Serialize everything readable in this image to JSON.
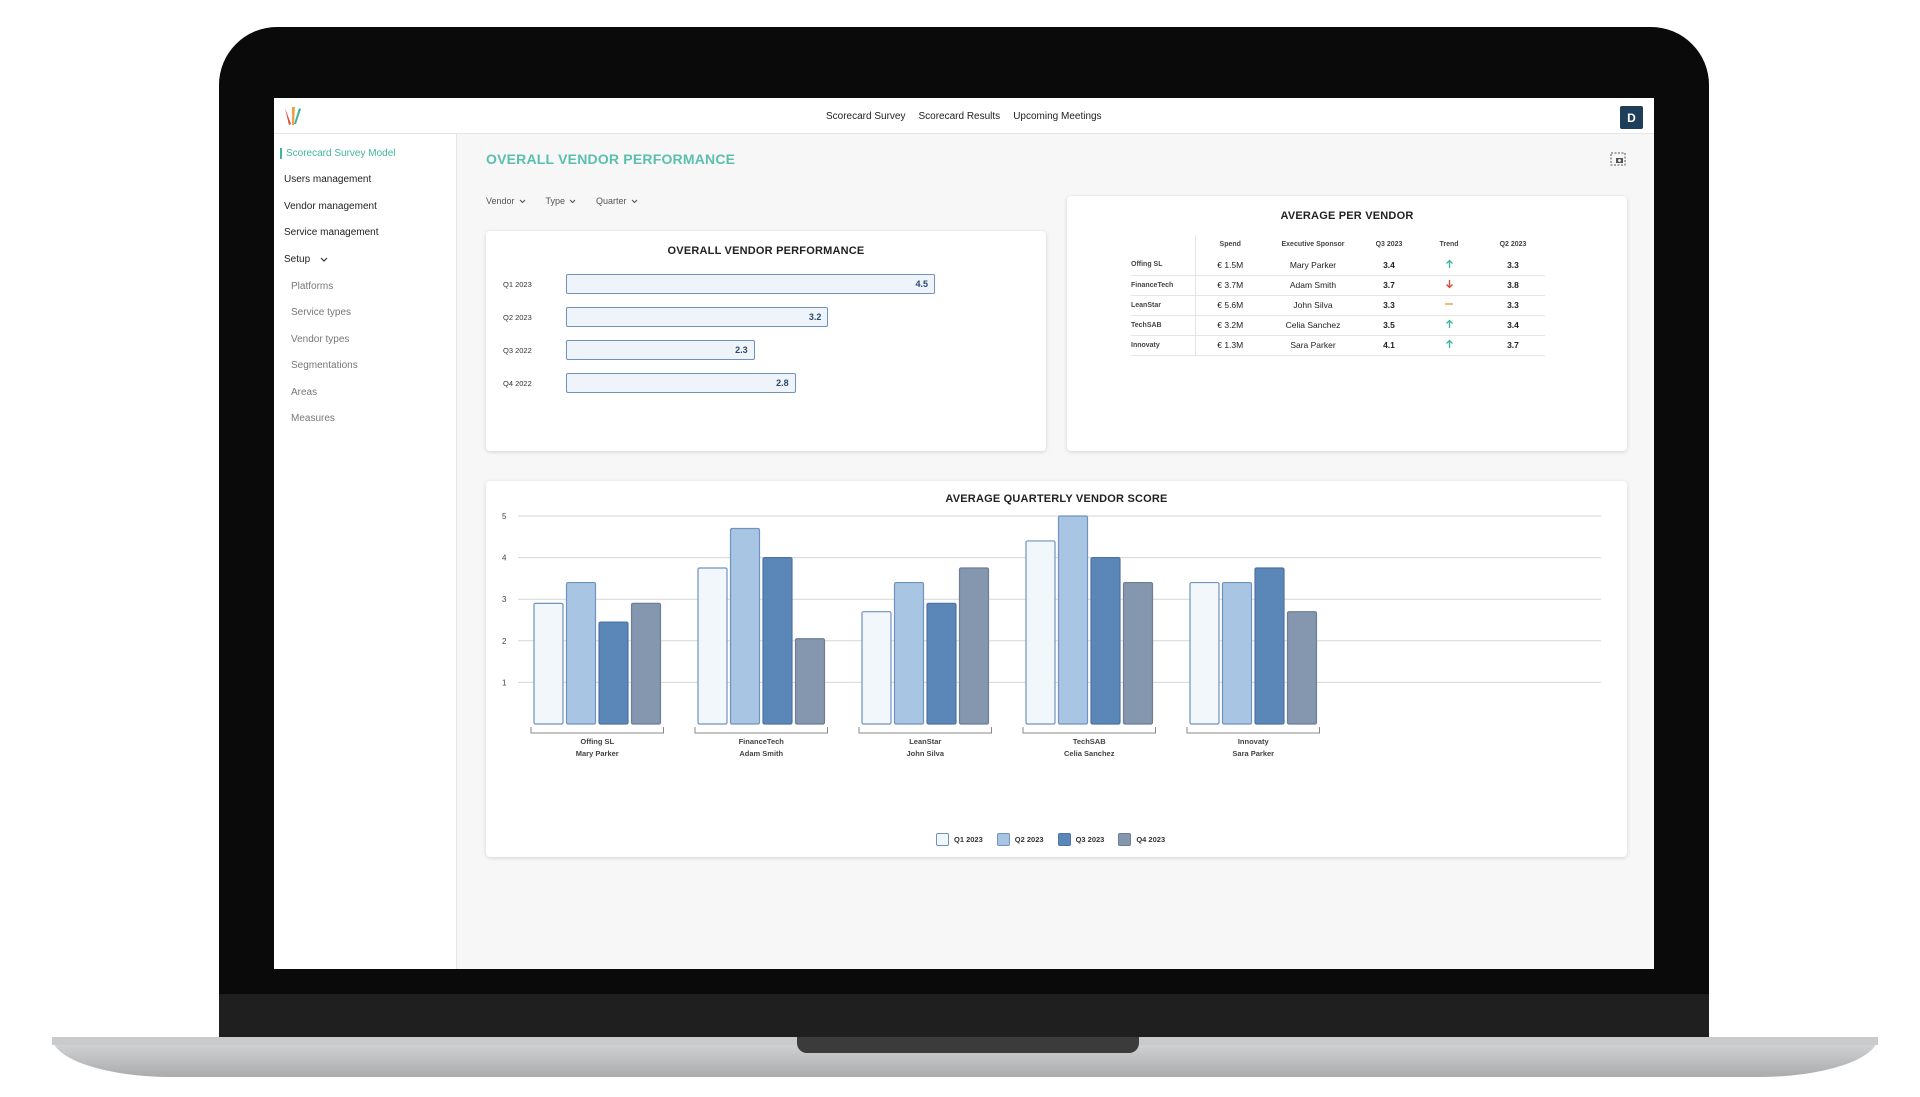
{
  "nav": {
    "links": [
      "Scorecard Survey",
      "Scorecard Results",
      "Upcoming Meetings"
    ],
    "avatar": "D"
  },
  "sidebar": {
    "items": [
      "Scorecard Survey Model",
      "Users management",
      "Vendor management",
      "Service management",
      "Setup"
    ],
    "setup_children": [
      "Platforms",
      "Service types",
      "Vendor types",
      "Segmentations",
      "Areas",
      "Measures"
    ]
  },
  "page": {
    "title": "OVERALL VENDOR PERFORMANCE",
    "filters": [
      "Vendor",
      "Type",
      "Quarter"
    ]
  },
  "overall_card": {
    "title": "OVERALL VENDOR PERFORMANCE"
  },
  "average_card": {
    "title": "AVERAGE PER VENDOR",
    "headers": [
      "Spend",
      "Executive Sponsor",
      "Q3 2023",
      "Trend",
      "Q2 2023"
    ],
    "rows": [
      {
        "vendor": "Offing SL",
        "spend": "€ 1.5M",
        "sponsor": "Mary Parker",
        "q3": "3.4",
        "trend": "up",
        "q2": "3.3"
      },
      {
        "vendor": "FinanceTech",
        "spend": "€ 3.7M",
        "sponsor": "Adam Smith",
        "q3": "3.7",
        "trend": "down",
        "q2": "3.8"
      },
      {
        "vendor": "LeanStar",
        "spend": "€ 5.6M",
        "sponsor": "John Silva",
        "q3": "3.3",
        "trend": "flat",
        "q2": "3.3"
      },
      {
        "vendor": "TechSAB",
        "spend": "€ 3.2M",
        "sponsor": "Celia Sanchez",
        "q3": "3.5",
        "trend": "up",
        "q2": "3.4"
      },
      {
        "vendor": "Innovaty",
        "spend": "€ 1.3M",
        "sponsor": "Sara Parker",
        "q3": "4.1",
        "trend": "up",
        "q2": "3.7"
      }
    ]
  },
  "quarterly_card": {
    "title": "AVERAGE QUARTERLY VENDOR SCORE"
  },
  "colors": {
    "accent": "#5bbfae",
    "q1": "#f2f7fc",
    "q2": "#a8c6e4",
    "q3": "#5b86b8",
    "q4": "#8597ae",
    "up": "#3fb5a1",
    "down": "#e0453a",
    "flat": "#f0a04b"
  },
  "chart_data": [
    {
      "type": "bar",
      "orientation": "horizontal",
      "title": "OVERALL VENDOR PERFORMANCE",
      "categories": [
        "Q1 2023",
        "Q2 2023",
        "Q3 2022",
        "Q4 2022"
      ],
      "values": [
        4.5,
        3.2,
        2.3,
        2.8
      ],
      "xlim": [
        0,
        5
      ]
    },
    {
      "type": "bar",
      "title": "AVERAGE QUARTERLY VENDOR SCORE",
      "categories": [
        "Offing SL",
        "FinanceTech",
        "LeanStar",
        "TechSAB",
        "Innovaty"
      ],
      "sublabels": [
        "Mary Parker",
        "Adam Smith",
        "John Silva",
        "Celia Sanchez",
        "Sara Parker"
      ],
      "series": [
        {
          "name": "Q1 2023",
          "values": [
            2.9,
            3.75,
            2.7,
            4.4,
            3.4
          ]
        },
        {
          "name": "Q2 2023",
          "values": [
            3.4,
            4.7,
            3.4,
            5.0,
            3.4
          ]
        },
        {
          "name": "Q3 2023",
          "values": [
            2.45,
            4.0,
            2.9,
            4.0,
            3.75
          ]
        },
        {
          "name": "Q4 2023",
          "values": [
            2.9,
            2.05,
            3.75,
            3.4,
            2.7
          ]
        }
      ],
      "yticks": [
        1,
        2,
        3,
        4,
        5
      ],
      "ylim": [
        0,
        5
      ],
      "grid": true,
      "legend": "bottom"
    }
  ]
}
